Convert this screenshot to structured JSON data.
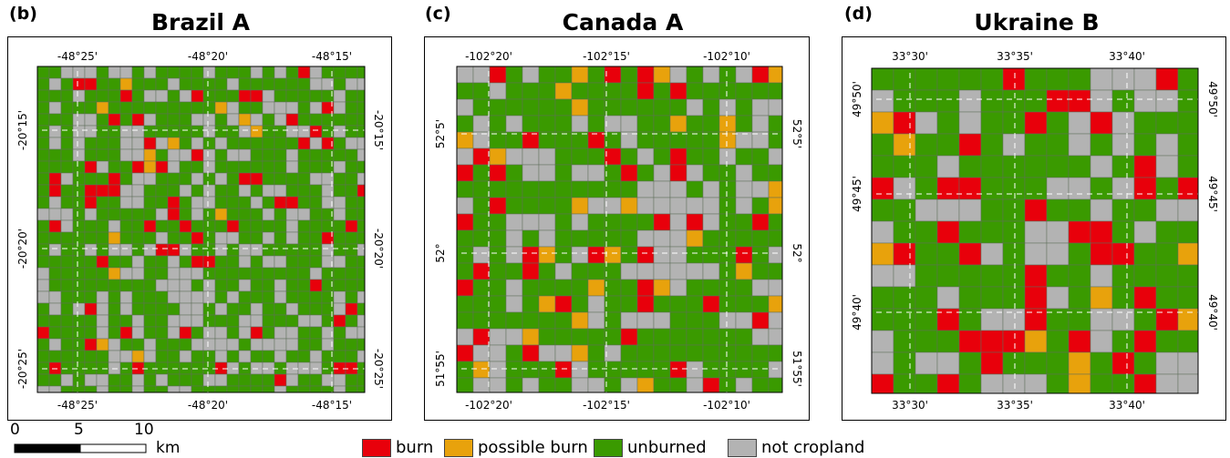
{
  "panels": [
    {
      "letter": "(b)",
      "title": "Brazil A",
      "top_labels": [
        "-48°25'",
        "-48°20'",
        "-48°15'"
      ],
      "bottom_labels": [
        "-48°25'",
        "-48°20'",
        "-48°15'"
      ],
      "left_labels": [
        "-20°15'",
        "-20°20'",
        "-20°25'"
      ],
      "right_labels": [
        "-20°15'",
        "-20°20'",
        "-20°25'"
      ]
    },
    {
      "letter": "(c)",
      "title": "Canada A",
      "top_labels": [
        "-102°20'",
        "-102°15'",
        "-102°10'"
      ],
      "bottom_labels": [
        "-102°20'",
        "-102°15'",
        "-102°10'"
      ],
      "left_labels": [
        "52°5'",
        "52°",
        "51°55'"
      ],
      "right_labels": [
        "52°5'",
        "52°",
        "51°55'"
      ]
    },
    {
      "letter": "(d)",
      "title": "Ukraine B",
      "top_labels": [
        "33°30'",
        "33°35'",
        "33°40'"
      ],
      "bottom_labels": [
        "33°30'",
        "33°35'",
        "33°40'"
      ],
      "left_labels": [
        "49°50'",
        "49°45'",
        "49°40'"
      ],
      "right_labels": [
        "49°50'",
        "49°45'",
        "49°40'"
      ]
    }
  ],
  "legend": [
    {
      "label": "burn",
      "color": "#e8000b"
    },
    {
      "label": "possible burn",
      "color": "#e8a20c"
    },
    {
      "label": "unburned",
      "color": "#3a9a00"
    },
    {
      "label": "not cropland",
      "color": "#b3b3b3"
    }
  ],
  "scale": {
    "ticks": [
      "0",
      "5",
      "10"
    ],
    "unit": "km"
  }
}
